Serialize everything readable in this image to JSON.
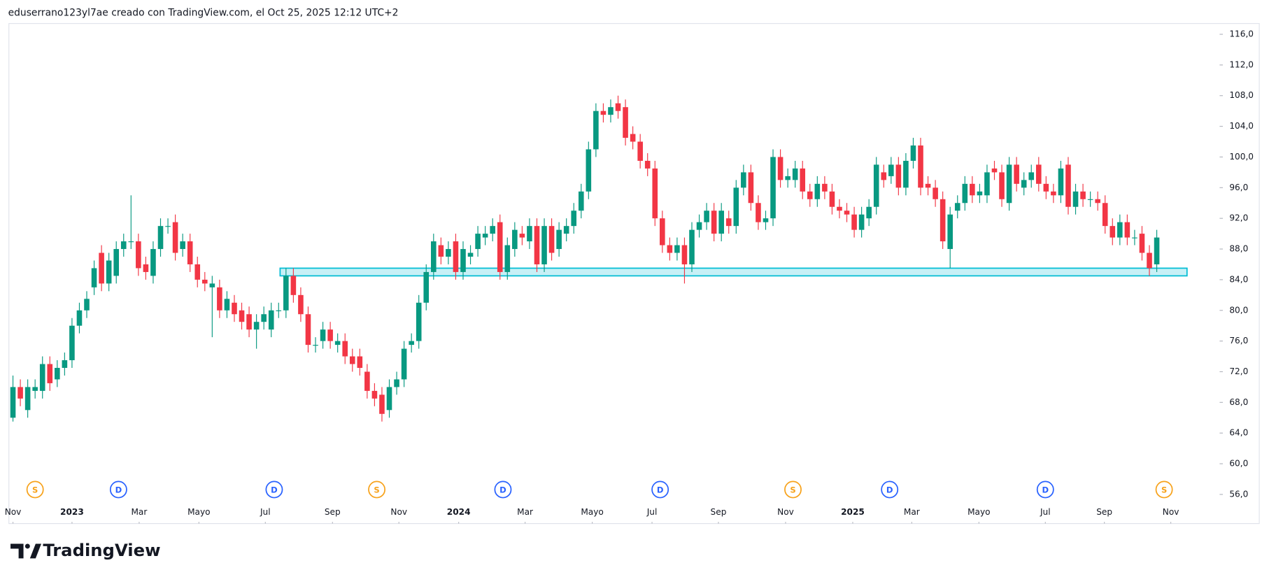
{
  "header": "eduserrano123yl7ae creado con TradingView.com, el Oct 25, 2025 12:12 UTC+2",
  "brand": "TradingView",
  "chart_data": {
    "type": "candlestick",
    "up_color": "#089981",
    "down_color": "#f23645",
    "open": [
      66,
      70,
      67,
      69.5,
      69.5,
      73,
      71,
      72.5,
      73.5,
      78,
      80,
      83,
      87.5,
      83.5,
      84.5,
      88,
      89,
      89,
      86,
      84.5,
      88,
      91,
      91.5,
      88,
      89,
      86,
      84,
      83,
      83,
      80,
      81,
      80,
      79.5,
      77.5,
      78.5,
      77.5,
      80,
      80,
      84.5,
      82,
      79.5,
      75.5,
      76,
      77.5,
      75.5,
      76,
      74,
      74,
      72,
      69.5,
      69,
      67,
      70,
      71,
      75.5,
      76,
      81,
      85,
      88.5,
      87,
      89,
      85,
      87,
      88,
      89.5,
      90,
      91.5,
      85,
      88,
      90,
      89,
      91,
      86,
      91,
      88,
      90,
      91,
      93,
      95.5,
      101,
      106,
      105.5,
      107,
      106.5,
      103,
      102,
      99.5,
      98.5,
      92,
      88.5,
      87.5,
      88.5,
      86,
      90.5,
      91.5,
      93,
      90,
      92,
      91,
      96,
      98,
      94,
      91.5,
      92,
      100,
      97,
      97,
      98.5,
      95.5,
      94.5,
      96.5,
      95.5,
      93.5,
      93,
      92.5,
      90.5,
      92,
      93.5,
      98,
      97.5,
      99,
      96,
      99.5,
      101.5,
      96.5,
      96,
      94.5,
      88,
      93,
      94,
      96.5,
      95,
      95,
      98.5,
      98,
      94,
      99,
      96,
      97,
      99,
      96.5,
      95.5,
      95,
      99,
      93.5,
      95.5,
      94.5,
      94.5,
      94,
      91,
      89.5,
      91.5,
      89.5,
      90,
      87.5,
      86
    ],
    "high": [
      71.5,
      71,
      71,
      71,
      74,
      74,
      73.5,
      74.5,
      79,
      81,
      82.5,
      86.5,
      88.5,
      87.5,
      89,
      90,
      95,
      90,
      87,
      89,
      92,
      92,
      92.5,
      90,
      90,
      87,
      85,
      84.5,
      84,
      82.5,
      82,
      81,
      80.5,
      79.5,
      80.5,
      81,
      81,
      85.5,
      85.5,
      83,
      80.5,
      76.5,
      78.5,
      78.5,
      77,
      77,
      75,
      75,
      73,
      70.5,
      70,
      71,
      72,
      76,
      77,
      82,
      86,
      90,
      89.5,
      89,
      90,
      89,
      88.5,
      91,
      91,
      92,
      92.5,
      89.5,
      91.5,
      91,
      92,
      92,
      92,
      92,
      91.5,
      92,
      94,
      96.5,
      102,
      107,
      107,
      107.5,
      108,
      107.5,
      104,
      103,
      100.5,
      99.5,
      93,
      89.5,
      89.5,
      89.5,
      91.5,
      92.5,
      94,
      94,
      94,
      93,
      97,
      99,
      99,
      95,
      93,
      101,
      101,
      98.5,
      99.5,
      99.5,
      96.5,
      97.5,
      97.5,
      96.5,
      94.5,
      94,
      93.5,
      93.5,
      94.5,
      100,
      99,
      100,
      100,
      100.5,
      102.5,
      102.5,
      97.5,
      97,
      95.5,
      93.5,
      95,
      97.5,
      97.5,
      96.5,
      99,
      99.5,
      99,
      100,
      100,
      98,
      99,
      100,
      97.5,
      96.5,
      99.5,
      100,
      96.5,
      96.5,
      95.5,
      95.5,
      95,
      92,
      92.5,
      92.5,
      90.5,
      91,
      88.5,
      90.5
    ],
    "low": [
      65.5,
      67.5,
      66,
      68.5,
      68.5,
      69.5,
      70,
      71.5,
      72.5,
      77,
      79,
      82,
      82.5,
      82.5,
      83.5,
      87,
      88,
      84.5,
      84,
      83.5,
      87,
      90,
      86.5,
      87,
      85,
      83,
      82.5,
      76.5,
      79,
      79,
      78.5,
      77.5,
      76.5,
      75,
      77.5,
      76.5,
      79,
      79,
      81,
      78.5,
      74.5,
      74.5,
      75,
      75,
      74.5,
      73,
      72,
      71.5,
      68.5,
      67.5,
      65.5,
      66,
      69,
      70,
      74.5,
      75,
      80,
      84,
      86,
      86,
      84,
      84,
      86,
      87,
      88.5,
      89,
      84,
      84,
      87,
      88.5,
      88,
      85,
      85,
      86.5,
      87,
      89,
      90,
      92,
      94.5,
      100,
      104.5,
      104.5,
      105,
      101.5,
      101,
      98.5,
      97.5,
      91,
      87.5,
      86.5,
      86.5,
      83.5,
      85,
      89.5,
      90.5,
      89,
      89,
      90,
      90,
      95,
      93,
      90.5,
      90.5,
      91,
      96,
      96,
      96,
      94.5,
      93.5,
      93.5,
      94.5,
      92.5,
      92,
      91.5,
      89.5,
      89.5,
      91,
      92.5,
      96,
      96.5,
      95,
      95,
      98.5,
      95,
      95,
      93.5,
      88,
      85.5,
      92,
      93,
      94,
      94,
      94,
      97,
      93.5,
      93,
      95.5,
      95,
      96,
      95.5,
      94.5,
      94,
      94,
      92.5,
      92.5,
      93.5,
      93.5,
      93,
      90,
      88.5,
      88.5,
      88.5,
      88.5,
      86.5,
      84.5,
      85
    ],
    "close": [
      70,
      68.5,
      70,
      70,
      73,
      70.5,
      72.5,
      73.5,
      78,
      80,
      81.5,
      85.5,
      83.5,
      86.5,
      88,
      89,
      89,
      85.5,
      85,
      88,
      91,
      91,
      87.5,
      89,
      86,
      84,
      83.5,
      83.5,
      80,
      81.5,
      79.5,
      78.5,
      77.5,
      78.5,
      79.5,
      80,
      80,
      84.5,
      82,
      79.5,
      75.5,
      75.5,
      77.5,
      76,
      76,
      74,
      73,
      72.5,
      69.5,
      68.5,
      66.5,
      70,
      71,
      75,
      76,
      81,
      85,
      89,
      87,
      88,
      85,
      88,
      87.5,
      90,
      90,
      91,
      85,
      88.5,
      90.5,
      89.5,
      91,
      86,
      91,
      87.5,
      90.5,
      91,
      93,
      95.5,
      101,
      106,
      105.5,
      106.5,
      106,
      102.5,
      102,
      99.5,
      98.5,
      92,
      88.5,
      87.5,
      88.5,
      86,
      90.5,
      91.5,
      93,
      90,
      93,
      91,
      96,
      98,
      94,
      91.5,
      92,
      100,
      97,
      97.5,
      98.5,
      95.5,
      94.5,
      96.5,
      95.5,
      93.5,
      93,
      92.5,
      90.5,
      92.5,
      93.5,
      99,
      97,
      99,
      96,
      99.5,
      101.5,
      96,
      96,
      94.5,
      89,
      92.5,
      94,
      96.5,
      95,
      95.5,
      98,
      98,
      94.5,
      99,
      96.5,
      97,
      98,
      96.5,
      95.5,
      95,
      98.5,
      93.5,
      95.5,
      94.5,
      94.5,
      94,
      91,
      89.5,
      91.5,
      89.5,
      89.5,
      87.5,
      85.5,
      89.5
    ],
    "xlim": [
      -0.55,
      163.3
    ],
    "ylim": [
      52.2,
      117.3
    ],
    "xticks": [
      {
        "value": 0,
        "label": "Nov"
      },
      {
        "value": 8,
        "label": "2023"
      },
      {
        "value": 17.1,
        "label": "Mar"
      },
      {
        "value": 25.2,
        "label": "Mayo"
      },
      {
        "value": 34.2,
        "label": "Jul"
      },
      {
        "value": 43.3,
        "label": "Sep"
      },
      {
        "value": 52.3,
        "label": "Nov"
      },
      {
        "value": 60.4,
        "label": "2024"
      },
      {
        "value": 69.4,
        "label": "Mar"
      },
      {
        "value": 78.5,
        "label": "Mayo"
      },
      {
        "value": 86.6,
        "label": "Jul"
      },
      {
        "value": 95.6,
        "label": "Sep"
      },
      {
        "value": 104.7,
        "label": "Nov"
      },
      {
        "value": 113.8,
        "label": "2025"
      },
      {
        "value": 121.8,
        "label": "Mar"
      },
      {
        "value": 130.9,
        "label": "Mayo"
      },
      {
        "value": 139.9,
        "label": "Jul"
      },
      {
        "value": 147.9,
        "label": "Sep"
      },
      {
        "value": 156.9,
        "label": "Nov"
      }
    ],
    "yticks": [
      {
        "value": 56,
        "label": "56,0"
      },
      {
        "value": 60,
        "label": "60,0"
      },
      {
        "value": 64,
        "label": "64,0"
      },
      {
        "value": 68,
        "label": "68,0"
      },
      {
        "value": 72,
        "label": "72,0"
      },
      {
        "value": 76,
        "label": "76,0"
      },
      {
        "value": 80,
        "label": "80,0"
      },
      {
        "value": 84,
        "label": "84,0"
      },
      {
        "value": 88,
        "label": "88,0"
      },
      {
        "value": 92,
        "label": "92,0"
      },
      {
        "value": 96,
        "label": "96,0"
      },
      {
        "value": 100,
        "label": "100,0"
      },
      {
        "value": 104,
        "label": "104,0"
      },
      {
        "value": 108,
        "label": "108,0"
      },
      {
        "value": 112,
        "label": "112,0"
      },
      {
        "value": 116,
        "label": "116,0"
      }
    ],
    "zone": {
      "start": 36.2,
      "end": 159.1,
      "top": 85.5,
      "bottom": 84.5,
      "color": "#00bcd4"
    },
    "events": [
      {
        "label": "S",
        "index": 3,
        "color": "#f7a21b"
      },
      {
        "label": "D",
        "index": 14.3,
        "color": "#2962ff"
      },
      {
        "label": "D",
        "index": 35.4,
        "color": "#2962ff"
      },
      {
        "label": "S",
        "index": 49.3,
        "color": "#f7a21b"
      },
      {
        "label": "D",
        "index": 66.4,
        "color": "#2962ff"
      },
      {
        "label": "D",
        "index": 87.7,
        "color": "#2962ff"
      },
      {
        "label": "S",
        "index": 105.7,
        "color": "#f7a21b"
      },
      {
        "label": "D",
        "index": 118.8,
        "color": "#2962ff"
      },
      {
        "label": "D",
        "index": 139.9,
        "color": "#2962ff"
      },
      {
        "label": "S",
        "index": 156,
        "color": "#f7a21b"
      }
    ]
  }
}
